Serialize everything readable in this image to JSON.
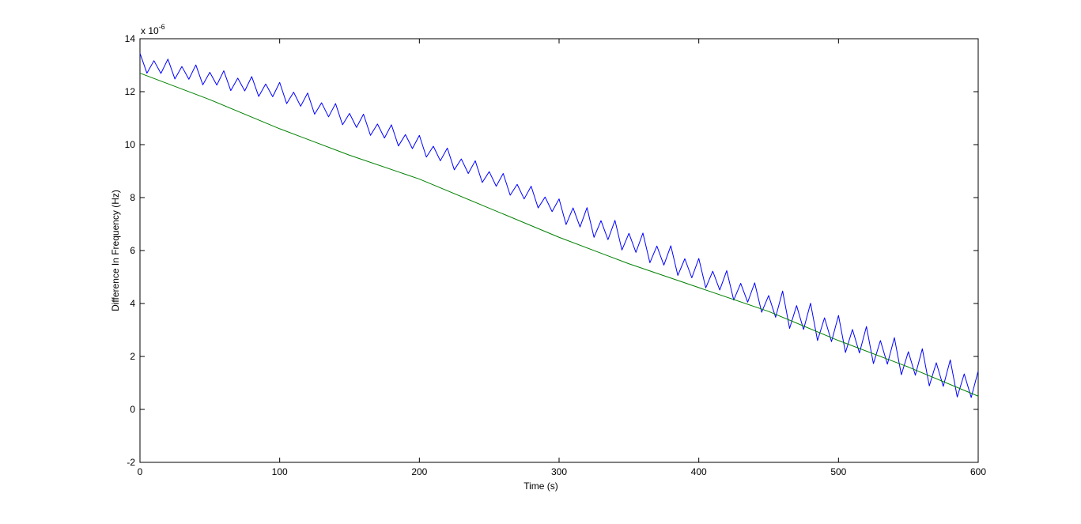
{
  "chart_data": {
    "type": "line",
    "xlabel": "Time (s)",
    "ylabel": "Difference In Frequency (Hz)",
    "y_multiplier": {
      "base": "x 10",
      "exponent": "-6"
    },
    "xlim": [
      0,
      600
    ],
    "xticks": [
      0,
      100,
      200,
      300,
      400,
      500,
      600
    ],
    "ylim": [
      -2,
      14
    ],
    "yticks": [
      -2,
      0,
      2,
      4,
      6,
      8,
      10,
      12,
      14
    ],
    "grid": false,
    "box": true,
    "series": [
      {
        "color": "#0000ff",
        "x": [
          0,
          5,
          10,
          15,
          20,
          25,
          30,
          35,
          40,
          45,
          50,
          55,
          60,
          65,
          70,
          75,
          80,
          85,
          90,
          95,
          100,
          105,
          110,
          115,
          120,
          125,
          130,
          135,
          140,
          145,
          150,
          155,
          160,
          165,
          170,
          175,
          180,
          185,
          190,
          195,
          200,
          205,
          210,
          215,
          220,
          225,
          230,
          235,
          240,
          245,
          250,
          255,
          260,
          265,
          270,
          275,
          280,
          285,
          290,
          295,
          300,
          305,
          310,
          315,
          320,
          325,
          330,
          335,
          340,
          345,
          350,
          355,
          360,
          365,
          370,
          375,
          380,
          385,
          390,
          395,
          400,
          405,
          410,
          415,
          420,
          425,
          430,
          435,
          440,
          445,
          450,
          455,
          460,
          465,
          470,
          475,
          480,
          485,
          490,
          495,
          500,
          505,
          510,
          515,
          520,
          525,
          530,
          535,
          540,
          545,
          550,
          555,
          560,
          565,
          570,
          575,
          580,
          585,
          590,
          595,
          600
        ],
        "values": [
          13.45,
          12.7,
          13.17,
          12.69,
          13.23,
          12.48,
          12.95,
          12.47,
          13.01,
          12.26,
          12.73,
          12.25,
          12.79,
          12.04,
          12.51,
          12.03,
          12.57,
          11.82,
          12.29,
          11.81,
          12.35,
          11.55,
          11.98,
          11.45,
          11.95,
          11.15,
          11.58,
          11.05,
          11.55,
          10.75,
          11.18,
          10.65,
          11.15,
          10.35,
          10.78,
          10.25,
          10.75,
          9.95,
          10.38,
          9.85,
          10.35,
          9.53,
          9.94,
          9.39,
          9.87,
          9.05,
          9.46,
          8.91,
          9.39,
          8.57,
          8.98,
          8.43,
          8.91,
          8.09,
          8.5,
          7.95,
          8.43,
          7.61,
          8.02,
          7.47,
          7.95,
          6.98,
          7.61,
          6.89,
          7.62,
          6.5,
          7.13,
          6.41,
          7.14,
          6.02,
          6.65,
          5.93,
          6.66,
          5.54,
          6.17,
          5.45,
          6.18,
          5.06,
          5.69,
          4.97,
          5.7,
          4.59,
          5.22,
          4.51,
          5.24,
          4.13,
          4.76,
          4.05,
          4.78,
          3.67,
          4.3,
          3.48,
          4.47,
          3.06,
          3.92,
          3.02,
          4.01,
          2.6,
          3.46,
          2.56,
          3.55,
          2.15,
          3.02,
          2.13,
          3.13,
          1.73,
          2.6,
          1.71,
          2.71,
          1.31,
          2.18,
          1.29,
          2.29,
          0.89,
          1.76,
          0.87,
          1.87,
          0.47,
          1.34,
          0.45,
          1.45
        ]
      },
      {
        "color": "#008000",
        "x": [
          0,
          50,
          100,
          150,
          200,
          250,
          300,
          350,
          400,
          450,
          500,
          550,
          600
        ],
        "values": [
          12.7,
          11.7,
          10.6,
          9.6,
          8.7,
          7.6,
          6.5,
          5.5,
          4.6,
          3.7,
          2.6,
          1.6,
          0.5
        ]
      }
    ]
  }
}
